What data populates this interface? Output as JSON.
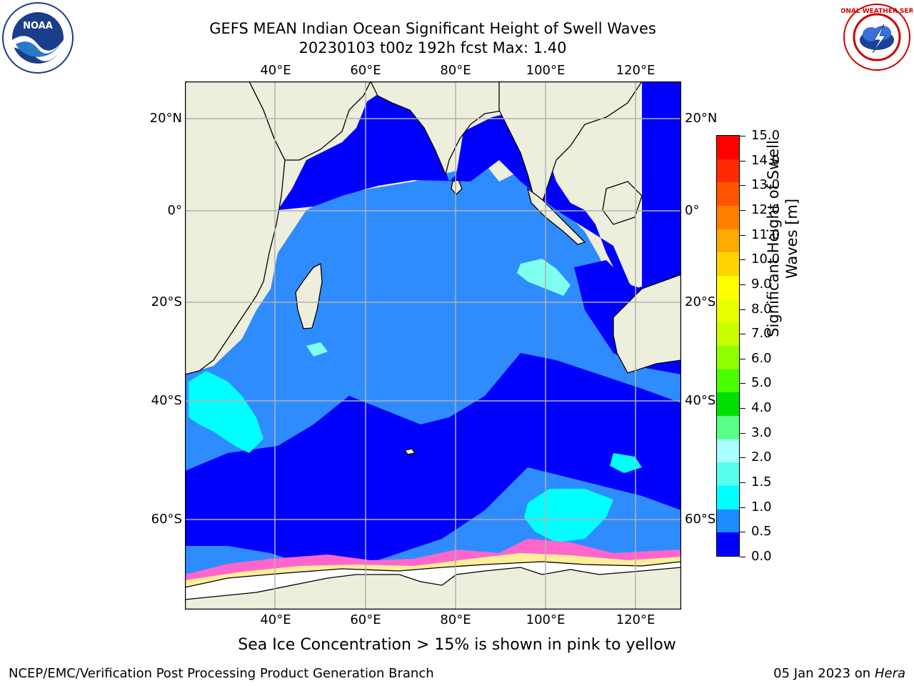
{
  "title": {
    "line1": "GEFS MEAN Indian Ocean Significant Height of Swell Waves",
    "line2": "20230103 t00z 192h fcst   Max: 1.40"
  },
  "map": {
    "lon_ticks": [
      "40°E",
      "60°E",
      "80°E",
      "100°E",
      "120°E"
    ],
    "lat_ticks": [
      "20°N",
      "0°",
      "20°S",
      "40°S",
      "60°S"
    ],
    "colors": {
      "land": "#eeeedd",
      "ocean_deep": "#0000ff",
      "ocean_mid": "#2f8cff",
      "ocean_cyan": "#00ffff",
      "ocean_lightcyan": "#7ffff0",
      "ice_white": "#ffffff",
      "ice_pink": "#ff66cc",
      "ice_yellow": "#ffee99",
      "grid": "#b0b0b0"
    }
  },
  "colorbar": {
    "title": "Significant Height of Swell Waves [m]",
    "title_line1": "Significant Height of Swell",
    "title_line2": "Waves [m]",
    "tick_labels": [
      "15.0",
      "14.0",
      "13.0",
      "12.0",
      "11.0",
      "10.0",
      "9.0",
      "8.0",
      "7.0",
      "6.0",
      "5.0",
      "4.0",
      "3.0",
      "2.0",
      "1.5",
      "1.0",
      "0.5",
      "0.0"
    ],
    "segment_colors": [
      "#ff0000",
      "#ff2a00",
      "#ff5500",
      "#ff8000",
      "#ffaa00",
      "#ffd400",
      "#ffff00",
      "#eaff00",
      "#c8ff00",
      "#90ff00",
      "#48ff00",
      "#00e000",
      "#55ff88",
      "#aaffff",
      "#55fff0",
      "#00ffff",
      "#1e8cff",
      "#0000ff"
    ]
  },
  "note": "Sea Ice Concentration > 15% is shown in pink to yellow",
  "footer": {
    "left": "NCEP/EMC/Verification Post Processing Product Generation Branch",
    "right_prefix": "05 Jan 2023 on ",
    "right_host": "Hera"
  },
  "logos": {
    "noaa_text": "NOAA",
    "nws_text": "NATIONAL WEATHER SERVICE"
  }
}
